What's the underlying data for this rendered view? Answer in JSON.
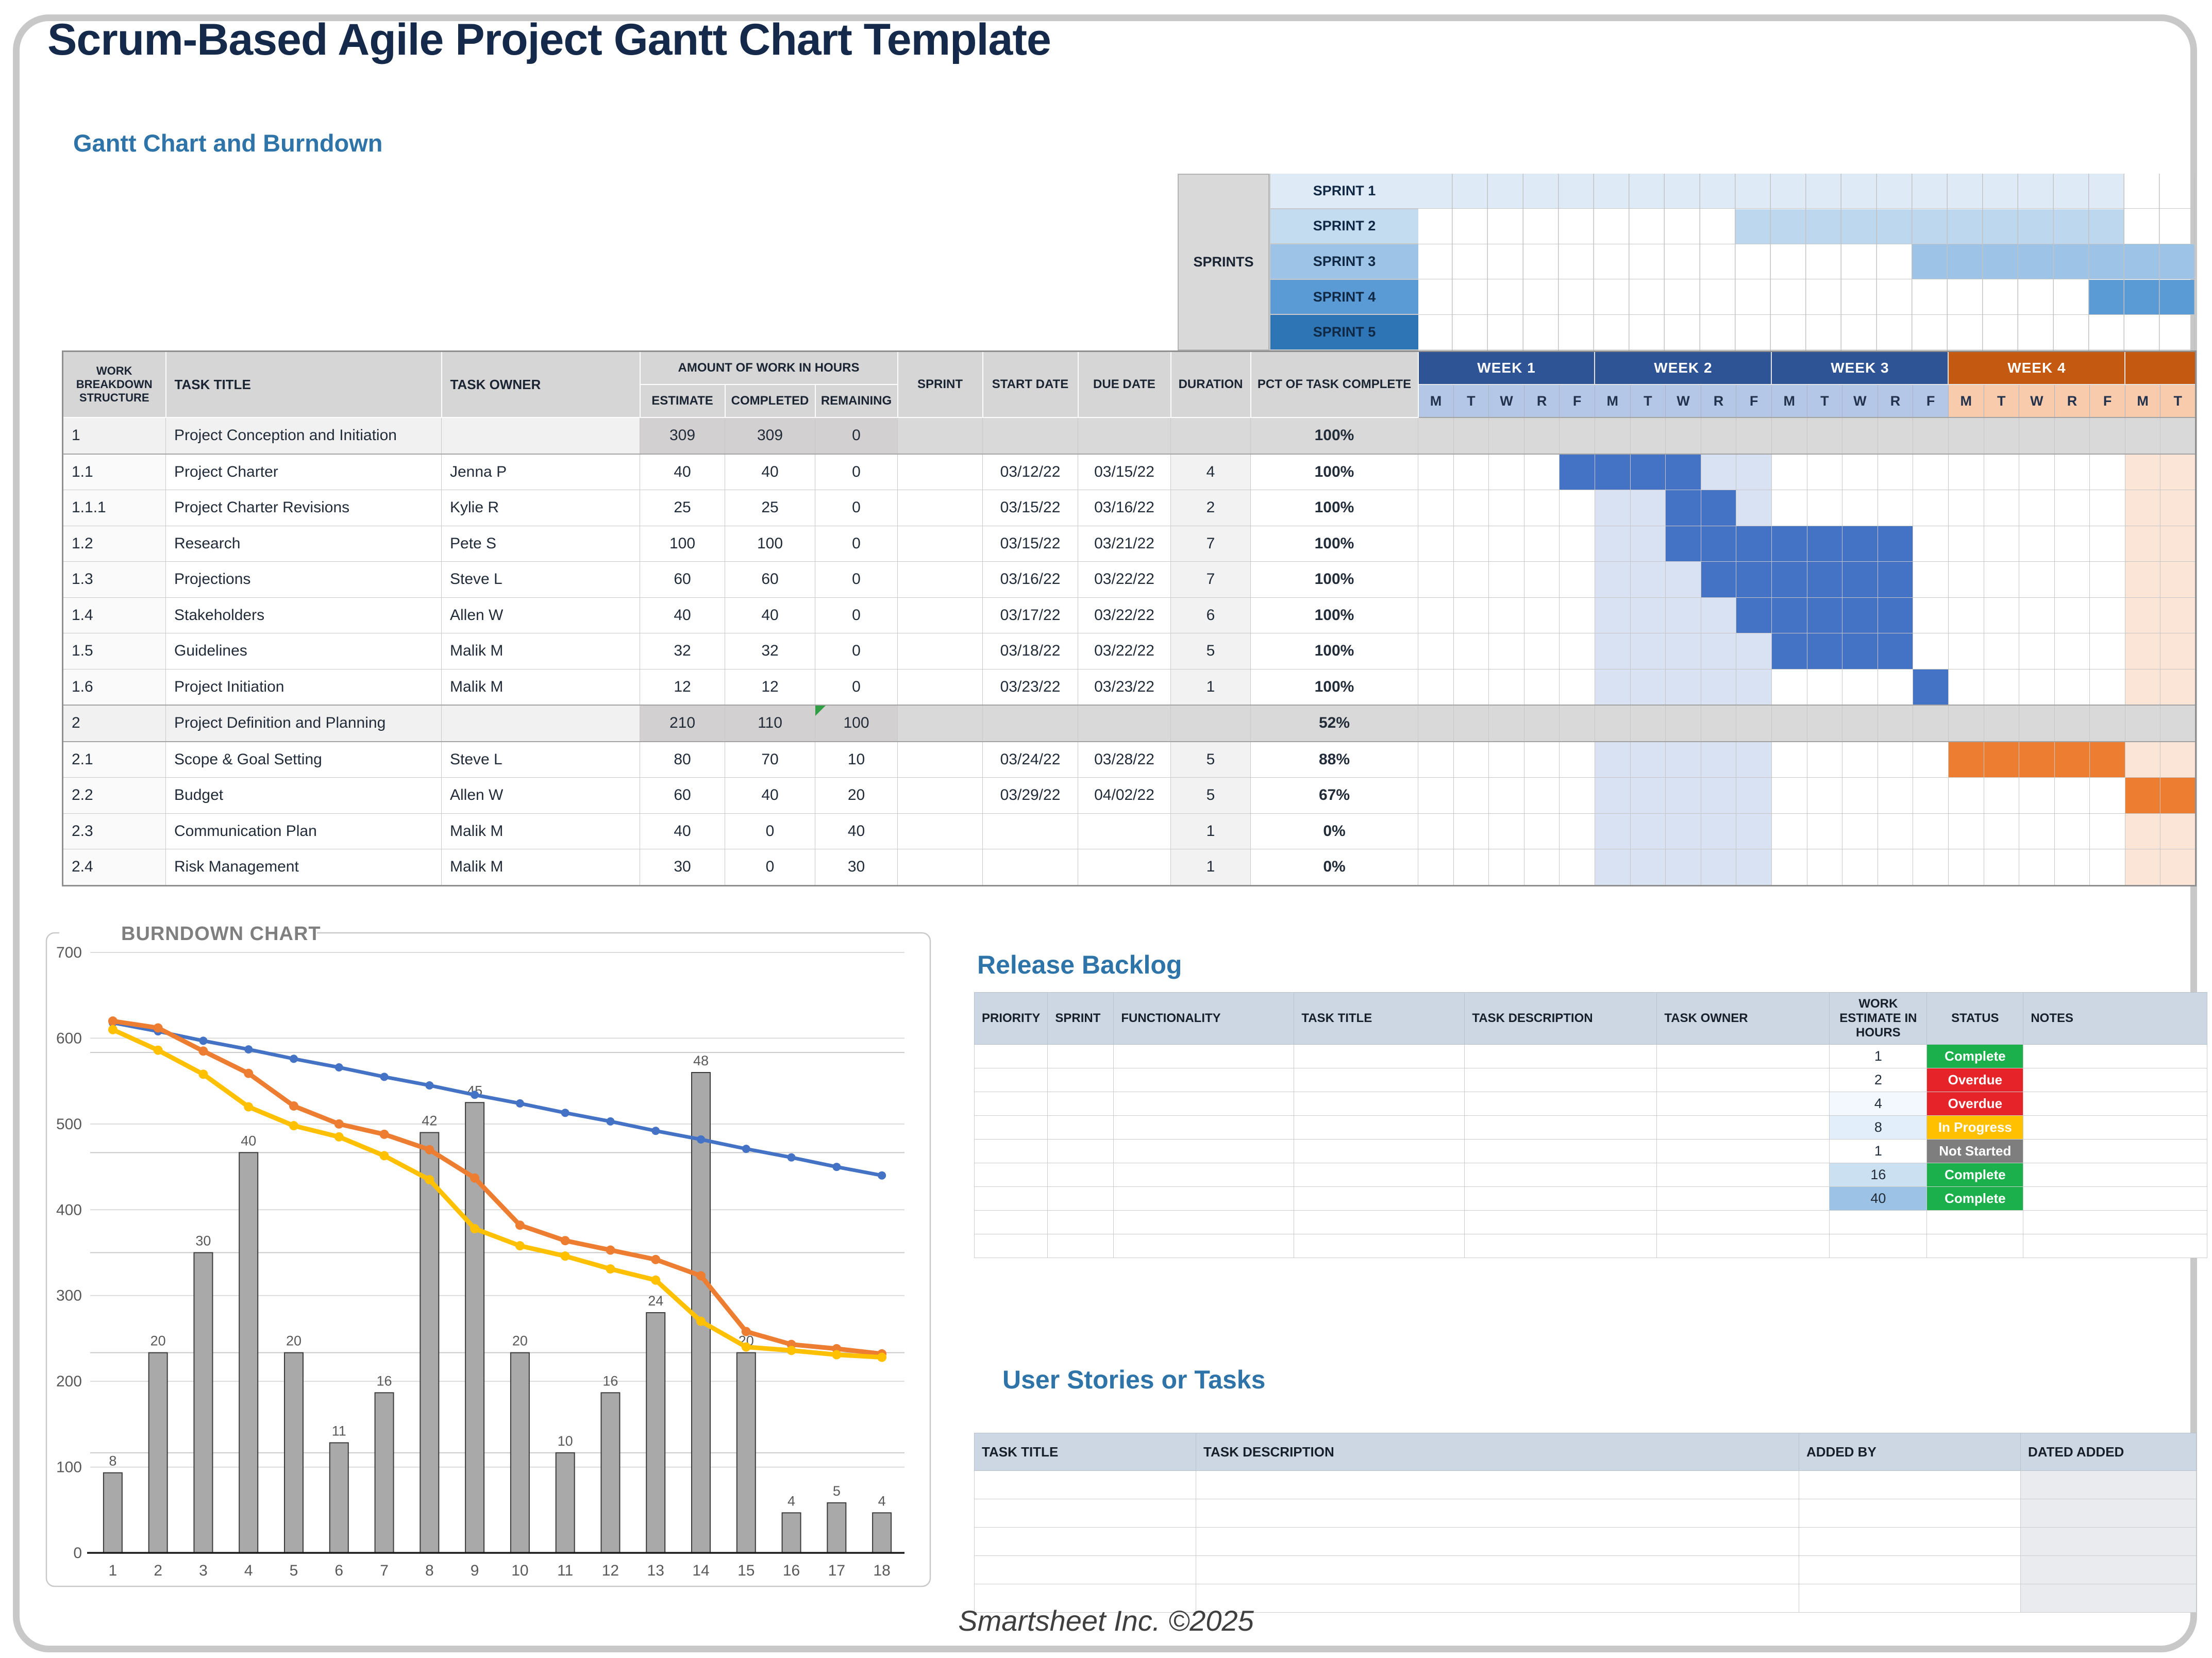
{
  "page": {
    "title": "Scrum-Based Agile Project Gantt Chart Template",
    "subtitle": "Gantt Chart and Burndown",
    "footer": "Smartsheet Inc. ©2025"
  },
  "gantt": {
    "sprints_label": "SPRINTS",
    "sprints": [
      {
        "label": "SPRINT 1",
        "label_bg": "#DEEBF7",
        "fill_bg": "#DEEBF7",
        "start": 1,
        "end": 20
      },
      {
        "label": "SPRINT 2",
        "label_bg": "#C3DCF0",
        "fill_bg": "#BDD7EE",
        "start": 10,
        "end": 20
      },
      {
        "label": "SPRINT 3",
        "label_bg": "#9DC3E6",
        "fill_bg": "#9DC3E6",
        "start": 15,
        "end": 22
      },
      {
        "label": "SPRINT 4",
        "label_bg": "#5B9BD5",
        "fill_bg": "#5B9BD5",
        "start": 20,
        "end": 22
      },
      {
        "label": "SPRINT 5",
        "label_bg": "#2E75B6",
        "fill_bg": null,
        "start": 0,
        "end": 0
      }
    ],
    "columns": {
      "wbs": "WORK BREAKDOWN STRUCTURE",
      "task_title": "TASK TITLE",
      "task_owner": "TASK OWNER",
      "amount": "AMOUNT OF WORK IN HOURS",
      "estimate": "ESTIMATE",
      "completed": "COMPLETED",
      "remaining": "REMAINING",
      "sprint": "SPRINT",
      "start_date": "START DATE",
      "due_date": "DUE DATE",
      "duration": "DURATION",
      "pct": "PCT OF TASK COMPLETE"
    },
    "weeks": [
      {
        "label": "WEEK 1",
        "bg": "#2F5496",
        "days_bg": "#B4C7E7",
        "days": [
          "M",
          "T",
          "W",
          "R",
          "F"
        ]
      },
      {
        "label": "WEEK 2",
        "bg": "#2F5496",
        "days_bg": "#B4C7E7",
        "days": [
          "M",
          "T",
          "W",
          "R",
          "F"
        ]
      },
      {
        "label": "WEEK 3",
        "bg": "#2F5496",
        "days_bg": "#B4C7E7",
        "days": [
          "M",
          "T",
          "W",
          "R",
          "F"
        ]
      },
      {
        "label": "WEEK 4",
        "bg": "#C45911",
        "days_bg": "#F8CBAD",
        "days": [
          "M",
          "T",
          "W",
          "R",
          "F"
        ]
      },
      {
        "label": "",
        "bg": "#C45911",
        "days_bg": "#F8CBAD",
        "days": [
          "M",
          "T"
        ]
      }
    ],
    "band": {
      "start": 6,
      "end": 10,
      "bg": "#D9E2F3"
    },
    "tail_band": {
      "start": 21,
      "end": 22,
      "bg": "#FBE5D6"
    },
    "rows": [
      {
        "wbs": "1",
        "title": "Project Conception and Initiation",
        "owner": "",
        "estimate": "309",
        "completed": "309",
        "remaining": "0",
        "sprint": "",
        "start": "",
        "due": "",
        "duration": "",
        "pct": "100%",
        "summary": true
      },
      {
        "wbs": "1.1",
        "title": "Project Charter",
        "owner": "Jenna P",
        "estimate": "40",
        "completed": "40",
        "remaining": "0",
        "sprint": "",
        "start": "03/12/22",
        "due": "03/15/22",
        "duration": "4",
        "pct": "100%",
        "bar": {
          "start": 5,
          "end": 8,
          "color": "#4472C4"
        }
      },
      {
        "wbs": "1.1.1",
        "title": "Project Charter Revisions",
        "owner": "Kylie R",
        "estimate": "25",
        "completed": "25",
        "remaining": "0",
        "sprint": "",
        "start": "03/15/22",
        "due": "03/16/22",
        "duration": "2",
        "pct": "100%",
        "bar": {
          "start": 8,
          "end": 9,
          "color": "#4472C4"
        }
      },
      {
        "wbs": "1.2",
        "title": "Research",
        "owner": "Pete S",
        "estimate": "100",
        "completed": "100",
        "remaining": "0",
        "sprint": "",
        "start": "03/15/22",
        "due": "03/21/22",
        "duration": "7",
        "pct": "100%",
        "bar": {
          "start": 8,
          "end": 14,
          "color": "#4472C4"
        }
      },
      {
        "wbs": "1.3",
        "title": "Projections",
        "owner": "Steve L",
        "estimate": "60",
        "completed": "60",
        "remaining": "0",
        "sprint": "",
        "start": "03/16/22",
        "due": "03/22/22",
        "duration": "7",
        "pct": "100%",
        "bar": {
          "start": 9,
          "end": 14,
          "color": "#4472C4"
        }
      },
      {
        "wbs": "1.4",
        "title": "Stakeholders",
        "owner": "Allen W",
        "estimate": "40",
        "completed": "40",
        "remaining": "0",
        "sprint": "",
        "start": "03/17/22",
        "due": "03/22/22",
        "duration": "6",
        "pct": "100%",
        "bar": {
          "start": 10,
          "end": 14,
          "color": "#4472C4"
        }
      },
      {
        "wbs": "1.5",
        "title": "Guidelines",
        "owner": "Malik M",
        "estimate": "32",
        "completed": "32",
        "remaining": "0",
        "sprint": "",
        "start": "03/18/22",
        "due": "03/22/22",
        "duration": "5",
        "pct": "100%",
        "bar": {
          "start": 11,
          "end": 14,
          "color": "#4472C4"
        }
      },
      {
        "wbs": "1.6",
        "title": "Project Initiation",
        "owner": "Malik M",
        "estimate": "12",
        "completed": "12",
        "remaining": "0",
        "sprint": "",
        "start": "03/23/22",
        "due": "03/23/22",
        "duration": "1",
        "pct": "100%",
        "bar": {
          "start": 15,
          "end": 15,
          "color": "#4472C4"
        }
      },
      {
        "wbs": "2",
        "title": "Project Definition and Planning",
        "owner": "",
        "estimate": "210",
        "completed": "110",
        "remaining": "100",
        "sprint": "",
        "start": "",
        "due": "",
        "duration": "",
        "pct": "52%",
        "summary": true,
        "flag": true
      },
      {
        "wbs": "2.1",
        "title": "Scope & Goal Setting",
        "owner": "Steve L",
        "estimate": "80",
        "completed": "70",
        "remaining": "10",
        "sprint": "",
        "start": "03/24/22",
        "due": "03/28/22",
        "duration": "5",
        "pct": "88%",
        "bar": {
          "start": 16,
          "end": 20,
          "color": "#ED7D31"
        }
      },
      {
        "wbs": "2.2",
        "title": "Budget",
        "owner": "Allen W",
        "estimate": "60",
        "completed": "40",
        "remaining": "20",
        "sprint": "",
        "start": "03/29/22",
        "due": "04/02/22",
        "duration": "5",
        "pct": "67%",
        "bar": {
          "start": 21,
          "end": 22,
          "color": "#ED7D31"
        }
      },
      {
        "wbs": "2.3",
        "title": "Communication Plan",
        "owner": "Malik M",
        "estimate": "40",
        "completed": "0",
        "remaining": "40",
        "sprint": "",
        "start": "",
        "due": "",
        "duration": "1",
        "pct": "0%"
      },
      {
        "wbs": "2.4",
        "title": "Risk Management",
        "owner": "Malik M",
        "estimate": "30",
        "completed": "0",
        "remaining": "30",
        "sprint": "",
        "start": "",
        "due": "",
        "duration": "1",
        "pct": "0%"
      }
    ]
  },
  "chart_data": {
    "type": "combo",
    "title": "BURNDOWN CHART",
    "xlabel": "",
    "ylabel": "",
    "ylim": [
      0,
      700
    ],
    "y_tick_step": 100,
    "secondary_ylim": [
      0,
      60
    ],
    "grid": true,
    "legend_position": "none",
    "categories": [
      1,
      2,
      3,
      4,
      5,
      6,
      7,
      8,
      9,
      10,
      11,
      12,
      13,
      14,
      15,
      16,
      17,
      18
    ],
    "bars": {
      "name": "bars-gray-secondary-axis",
      "color": "#A9A9A9",
      "values": [
        8,
        20,
        30,
        40,
        20,
        11,
        16,
        42,
        45,
        20,
        10,
        16,
        24,
        48,
        20,
        4,
        5,
        4
      ]
    },
    "series": [
      {
        "name": "line-blue",
        "color": "#4472C4",
        "values": [
          618,
          608,
          597,
          587,
          576,
          566,
          555,
          545,
          534,
          524,
          513,
          503,
          492,
          482,
          471,
          461,
          450,
          440
        ]
      },
      {
        "name": "line-orange",
        "color": "#ED7D31",
        "values": [
          620,
          612,
          585,
          559,
          521,
          500,
          488,
          470,
          437,
          382,
          364,
          353,
          342,
          323,
          258,
          243,
          238,
          232
        ]
      },
      {
        "name": "line-yellow",
        "color": "#FFC000",
        "values": [
          610,
          586,
          558,
          520,
          498,
          485,
          463,
          435,
          378,
          358,
          346,
          331,
          318,
          270,
          240,
          236,
          231,
          228
        ]
      }
    ]
  },
  "release_backlog": {
    "title": "Release Backlog",
    "headers": [
      "PRIORITY",
      "SPRINT",
      "FUNCTIONALITY",
      "TASK TITLE",
      "TASK DESCRIPTION",
      "TASK OWNER",
      "WORK ESTIMATE IN HOURS",
      "STATUS",
      "NOTES"
    ],
    "rows": [
      {
        "estimate": "1",
        "status": "Complete",
        "status_color": "#1BB04C",
        "estimate_bg": "#FFFFFF"
      },
      {
        "estimate": "2",
        "status": "Overdue",
        "status_color": "#E52328",
        "estimate_bg": "#FFFFFF"
      },
      {
        "estimate": "4",
        "status": "Overdue",
        "status_color": "#E52328",
        "estimate_bg": "#F2F8FD"
      },
      {
        "estimate": "8",
        "status": "In Progress",
        "status_color": "#FFC000",
        "estimate_bg": "#E2EEF9"
      },
      {
        "estimate": "1",
        "status": "Not Started",
        "status_color": "#7E7E7E",
        "estimate_bg": "#FFFFFF"
      },
      {
        "estimate": "16",
        "status": "Complete",
        "status_color": "#1BB04C",
        "estimate_bg": "#CBE0F1"
      },
      {
        "estimate": "40",
        "status": "Complete",
        "status_color": "#1BB04C",
        "estimate_bg": "#9CC3E5"
      },
      {
        "estimate": "",
        "status": "",
        "status_color": null,
        "estimate_bg": "#FFFFFF"
      },
      {
        "estimate": "",
        "status": "",
        "status_color": null,
        "estimate_bg": "#FFFFFF"
      }
    ]
  },
  "user_stories": {
    "title": "User Stories or Tasks",
    "headers": [
      "TASK TITLE",
      "TASK DESCRIPTION",
      "ADDED BY",
      "DATED ADDED"
    ],
    "empty_rows": 5
  }
}
